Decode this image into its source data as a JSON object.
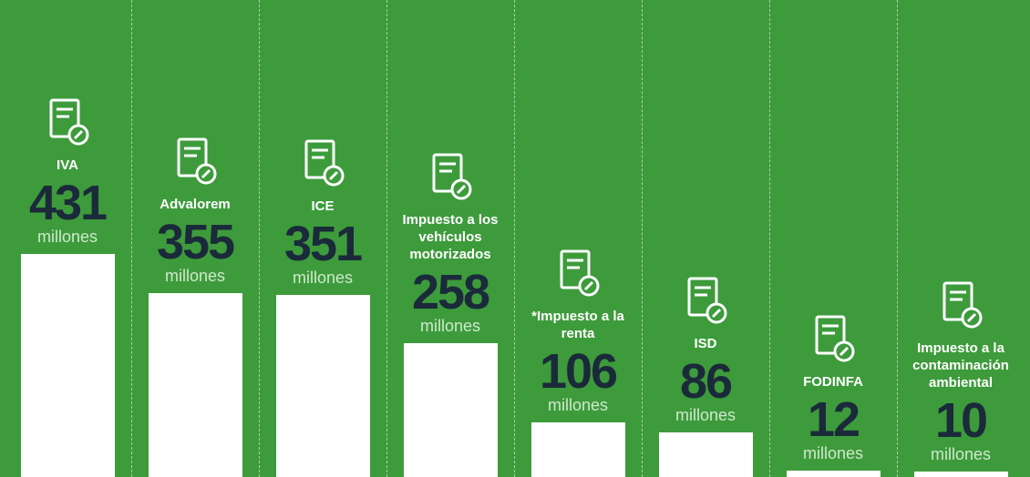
{
  "chart_data": {
    "type": "bar",
    "categories": [
      "IVA",
      "Advalorem",
      "ICE",
      "Impuesto a los vehículos motorizados",
      "*Impuesto a la renta",
      "ISD",
      "FODINFA",
      "Impuesto a la contaminación ambiental"
    ],
    "values": [
      431,
      355,
      351,
      258,
      106,
      86,
      12,
      10
    ],
    "unit": "millones",
    "color": "#ffffff"
  }
}
